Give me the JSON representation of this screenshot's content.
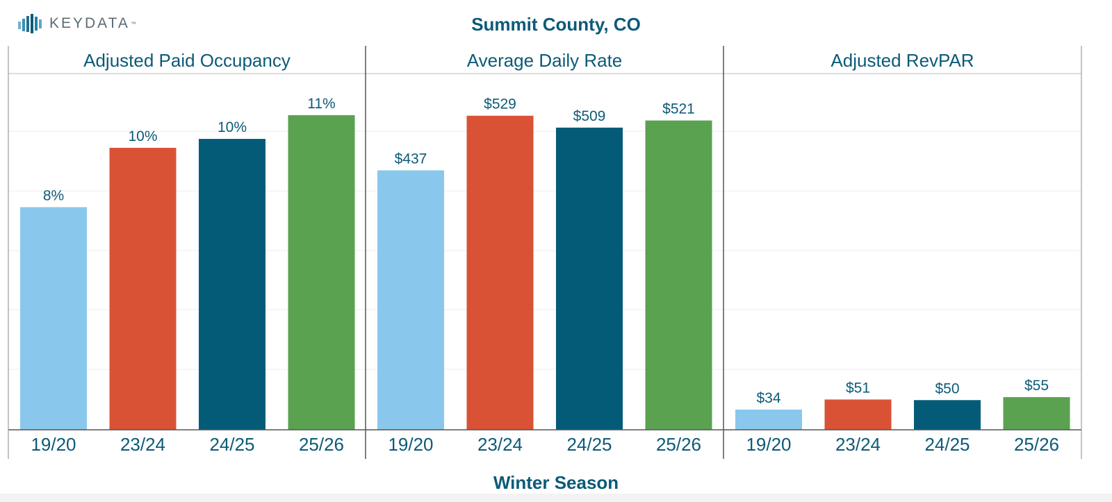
{
  "logo": {
    "text": "KEYDATA",
    "tm": "™"
  },
  "title": "Summit County, CO",
  "x_axis_title": "Winter Season",
  "colors": {
    "text": "#0c5a78",
    "series": [
      "#8ac7ec",
      "#d95236",
      "#035b78",
      "#5aa250"
    ],
    "grid": "#eeeeee",
    "border": "#555555"
  },
  "chart_data": [
    {
      "type": "bar",
      "title": "Adjusted Paid Occupancy",
      "categories": [
        "19/20",
        "23/24",
        "24/25",
        "25/26"
      ],
      "values": [
        0.075,
        0.095,
        0.098,
        0.106
      ],
      "labels": [
        "8%",
        "10%",
        "10%",
        "11%"
      ],
      "ylim": [
        0,
        0.12
      ]
    },
    {
      "type": "bar",
      "title": "Average Daily Rate",
      "categories": [
        "19/20",
        "23/24",
        "24/25",
        "25/26"
      ],
      "values": [
        437,
        529,
        509,
        521
      ],
      "labels": [
        "$437",
        "$529",
        "$509",
        "$521"
      ],
      "ylim": [
        0,
        600
      ]
    },
    {
      "type": "bar",
      "title": "Adjusted RevPAR",
      "categories": [
        "19/20",
        "23/24",
        "24/25",
        "25/26"
      ],
      "values": [
        34,
        51,
        50,
        55
      ],
      "labels": [
        "$34",
        "$51",
        "$50",
        "$55"
      ],
      "ylim": [
        0,
        600
      ]
    }
  ]
}
